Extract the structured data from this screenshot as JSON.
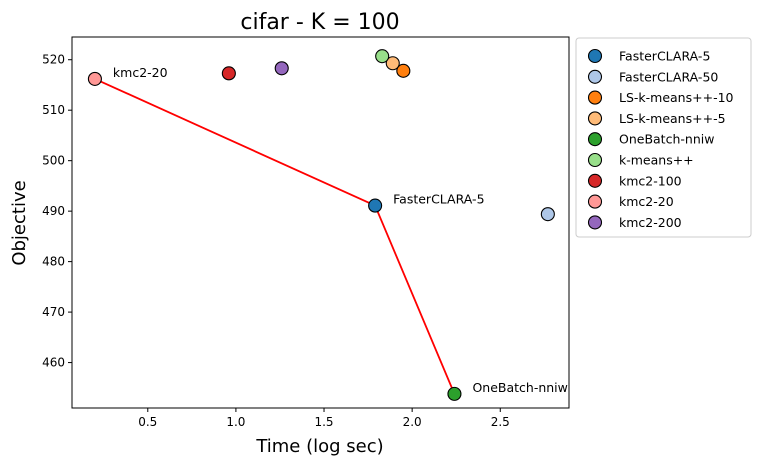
{
  "chart_data": {
    "type": "scatter",
    "title": "cifar - K = 100",
    "xlabel": "Time (log sec)",
    "ylabel": "Objective",
    "xlim": [
      0.07,
      2.89
    ],
    "ylim": [
      451,
      524.5
    ],
    "xticks": [
      0.5,
      1.0,
      1.5,
      2.0,
      2.5
    ],
    "xtick_labels": [
      "0.5",
      "1.0",
      "1.5",
      "2.0",
      "2.5"
    ],
    "yticks": [
      460,
      470,
      480,
      490,
      500,
      510,
      520
    ],
    "ytick_labels": [
      "460",
      "470",
      "480",
      "490",
      "500",
      "510",
      "520"
    ],
    "grid": false,
    "legend_position": "outside-right",
    "series": [
      {
        "name": "FasterCLARA-5",
        "color": "#1f77b4",
        "x": 1.79,
        "y": 491.1
      },
      {
        "name": "FasterCLARA-50",
        "color": "#aec7e8",
        "x": 2.77,
        "y": 489.4
      },
      {
        "name": "LS-k-means++-10",
        "color": "#ff7f0e",
        "x": 1.95,
        "y": 517.8
      },
      {
        "name": "LS-k-means++-5",
        "color": "#ffbb78",
        "x": 1.89,
        "y": 519.3
      },
      {
        "name": "OneBatch-nniw",
        "color": "#2ca02c",
        "x": 2.24,
        "y": 453.8
      },
      {
        "name": "k-means++",
        "color": "#98df8a",
        "x": 1.83,
        "y": 520.7
      },
      {
        "name": "kmc2-100",
        "color": "#d62728",
        "x": 0.96,
        "y": 517.3
      },
      {
        "name": "kmc2-20",
        "color": "#ff9896",
        "x": 0.2,
        "y": 516.2
      },
      {
        "name": "kmc2-200",
        "color": "#9467bd",
        "x": 1.26,
        "y": 518.3
      }
    ],
    "pareto_front": {
      "color": "#ff0000",
      "points": [
        [
          0.2,
          516.2
        ],
        [
          1.79,
          491.1
        ],
        [
          2.24,
          453.8
        ]
      ]
    },
    "annotations": [
      {
        "text": "kmc2-20",
        "x": 0.2,
        "y": 516.2
      },
      {
        "text": "FasterCLARA-5",
        "x": 1.79,
        "y": 491.1
      },
      {
        "text": "OneBatch-nniw",
        "x": 2.24,
        "y": 453.8
      }
    ]
  }
}
